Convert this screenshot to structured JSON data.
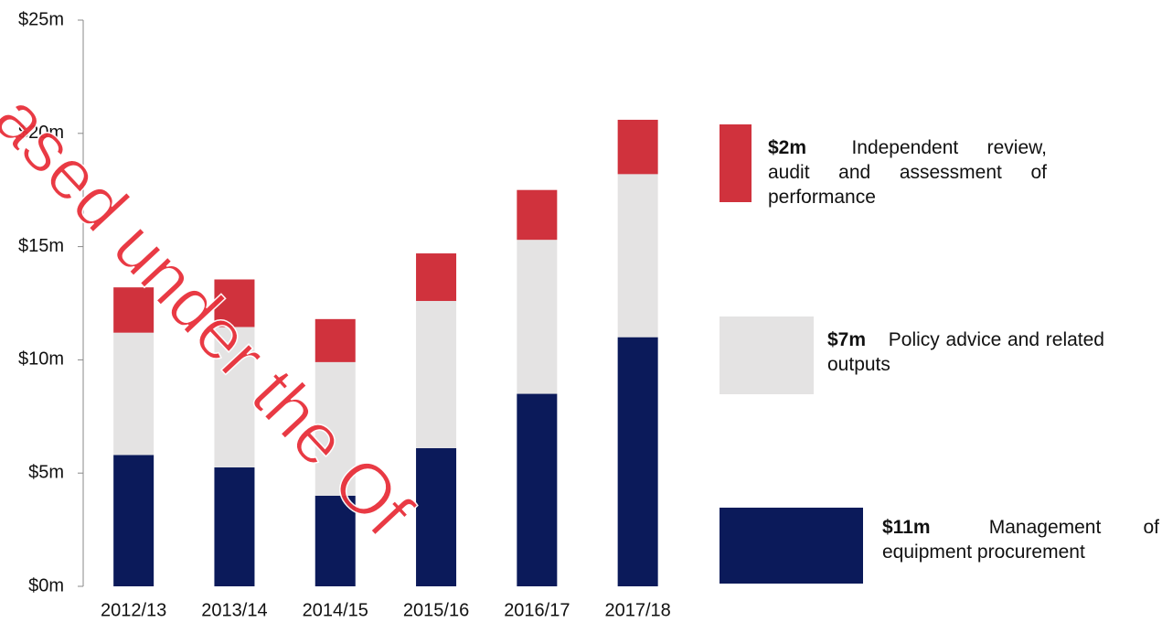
{
  "chart_data": {
    "type": "stacked_bar",
    "categories": [
      "2012/13",
      "2013/14",
      "2014/15",
      "2015/16",
      "2016/17",
      "2017/18"
    ],
    "series": [
      {
        "name": "Management of equipment procurement",
        "legend_label": "$11m",
        "color": "#0b1a5a",
        "values": [
          5.8,
          5.25,
          4.0,
          6.1,
          8.5,
          11.0
        ]
      },
      {
        "name": "Policy advice and related outputs",
        "legend_label": "$7m",
        "color": "#e4e3e3",
        "values": [
          5.4,
          6.2,
          5.9,
          6.5,
          6.8,
          7.2
        ]
      },
      {
        "name": "Independent review, audit and assessment of performance",
        "legend_label": "$2m",
        "color": "#d0323d",
        "values": [
          2.0,
          2.1,
          1.9,
          2.1,
          2.2,
          2.4
        ]
      }
    ],
    "ylim": [
      0,
      25
    ],
    "yticks": [
      {
        "value": 0,
        "label": "$0m"
      },
      {
        "value": 5,
        "label": "$5m"
      },
      {
        "value": 10,
        "label": "$10m"
      },
      {
        "value": 15,
        "label": "$15m"
      },
      {
        "value": 20,
        "label": "$20m"
      },
      {
        "value": 25,
        "label": "$25m"
      }
    ],
    "watermark": "ased under the Of"
  }
}
